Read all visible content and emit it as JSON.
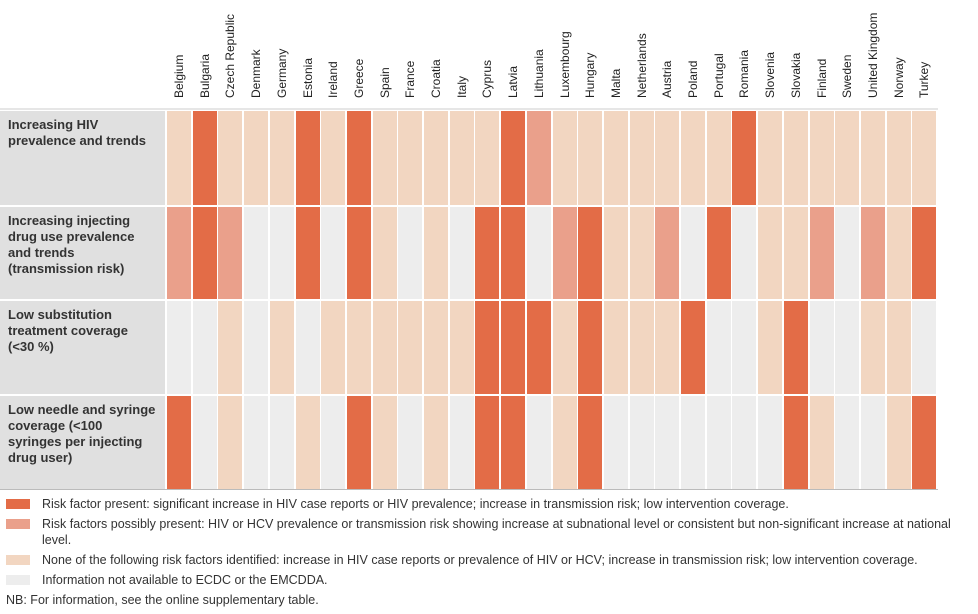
{
  "chart_data": {
    "type": "heatmap",
    "columns": [
      "Belgium",
      "Bulgaria",
      "Czech Republic",
      "Denmark",
      "Germany",
      "Estonia",
      "Ireland",
      "Greece",
      "Spain",
      "France",
      "Croatia",
      "Italy",
      "Cyprus",
      "Latvia",
      "Lithuania",
      "Luxembourg",
      "Hungary",
      "Malta",
      "Netherlands",
      "Austria",
      "Poland",
      "Portugal",
      "Romania",
      "Slovenia",
      "Slovakia",
      "Finland",
      "Sweden",
      "United Kingdom",
      "Norway",
      "Turkey"
    ],
    "rows": [
      {
        "label": "Increasing HIV prevalence and trends",
        "values": [
          1,
          3,
          1,
          1,
          1,
          3,
          1,
          3,
          1,
          1,
          1,
          1,
          1,
          3,
          2,
          1,
          1,
          1,
          1,
          1,
          1,
          1,
          3,
          1,
          1,
          1,
          1,
          1,
          1,
          1
        ]
      },
      {
        "label": "Increasing injecting drug use prevalence and trends (transmission risk)",
        "values": [
          2,
          3,
          2,
          0,
          0,
          3,
          0,
          3,
          1,
          0,
          1,
          0,
          3,
          3,
          0,
          2,
          3,
          1,
          1,
          2,
          0,
          3,
          0,
          1,
          1,
          2,
          0,
          2,
          1,
          3
        ]
      },
      {
        "label": "Low substitution treatment coverage (<30 %)",
        "values": [
          0,
          0,
          1,
          0,
          1,
          0,
          1,
          1,
          1,
          1,
          1,
          1,
          3,
          3,
          3,
          1,
          3,
          1,
          1,
          1,
          3,
          0,
          0,
          1,
          3,
          0,
          0,
          1,
          1,
          0
        ]
      },
      {
        "label": "Low needle and syringe coverage (<100 syringes per injecting drug user)",
        "values": [
          3,
          0,
          1,
          0,
          0,
          1,
          0,
          3,
          1,
          0,
          1,
          0,
          3,
          3,
          0,
          1,
          3,
          0,
          0,
          0,
          0,
          0,
          0,
          0,
          3,
          1,
          0,
          0,
          1,
          3
        ]
      }
    ],
    "categories": [
      {
        "code": 3,
        "color": "#e36c47",
        "label": "Risk factor present: significant increase in HIV case reports or HIV prevalence; increase in transmission risk; low intervention coverage."
      },
      {
        "code": 2,
        "color": "#eaa08b",
        "label": "Risk factors possibly present: HIV or HCV prevalence or transmission risk showing increase at subnational level or consistent but non-significant increase at national level."
      },
      {
        "code": 1,
        "color": "#f2d6c1",
        "label": "None of the following risk factors identified: increase in HIV case reports or prevalence of HIV or HCV; increase in transmission risk; low intervention coverage."
      },
      {
        "code": 0,
        "color": "#ededed",
        "label": "Information not available to ECDC or the EMCDDA."
      }
    ],
    "note": "NB: For information, see the online supplementary table."
  }
}
